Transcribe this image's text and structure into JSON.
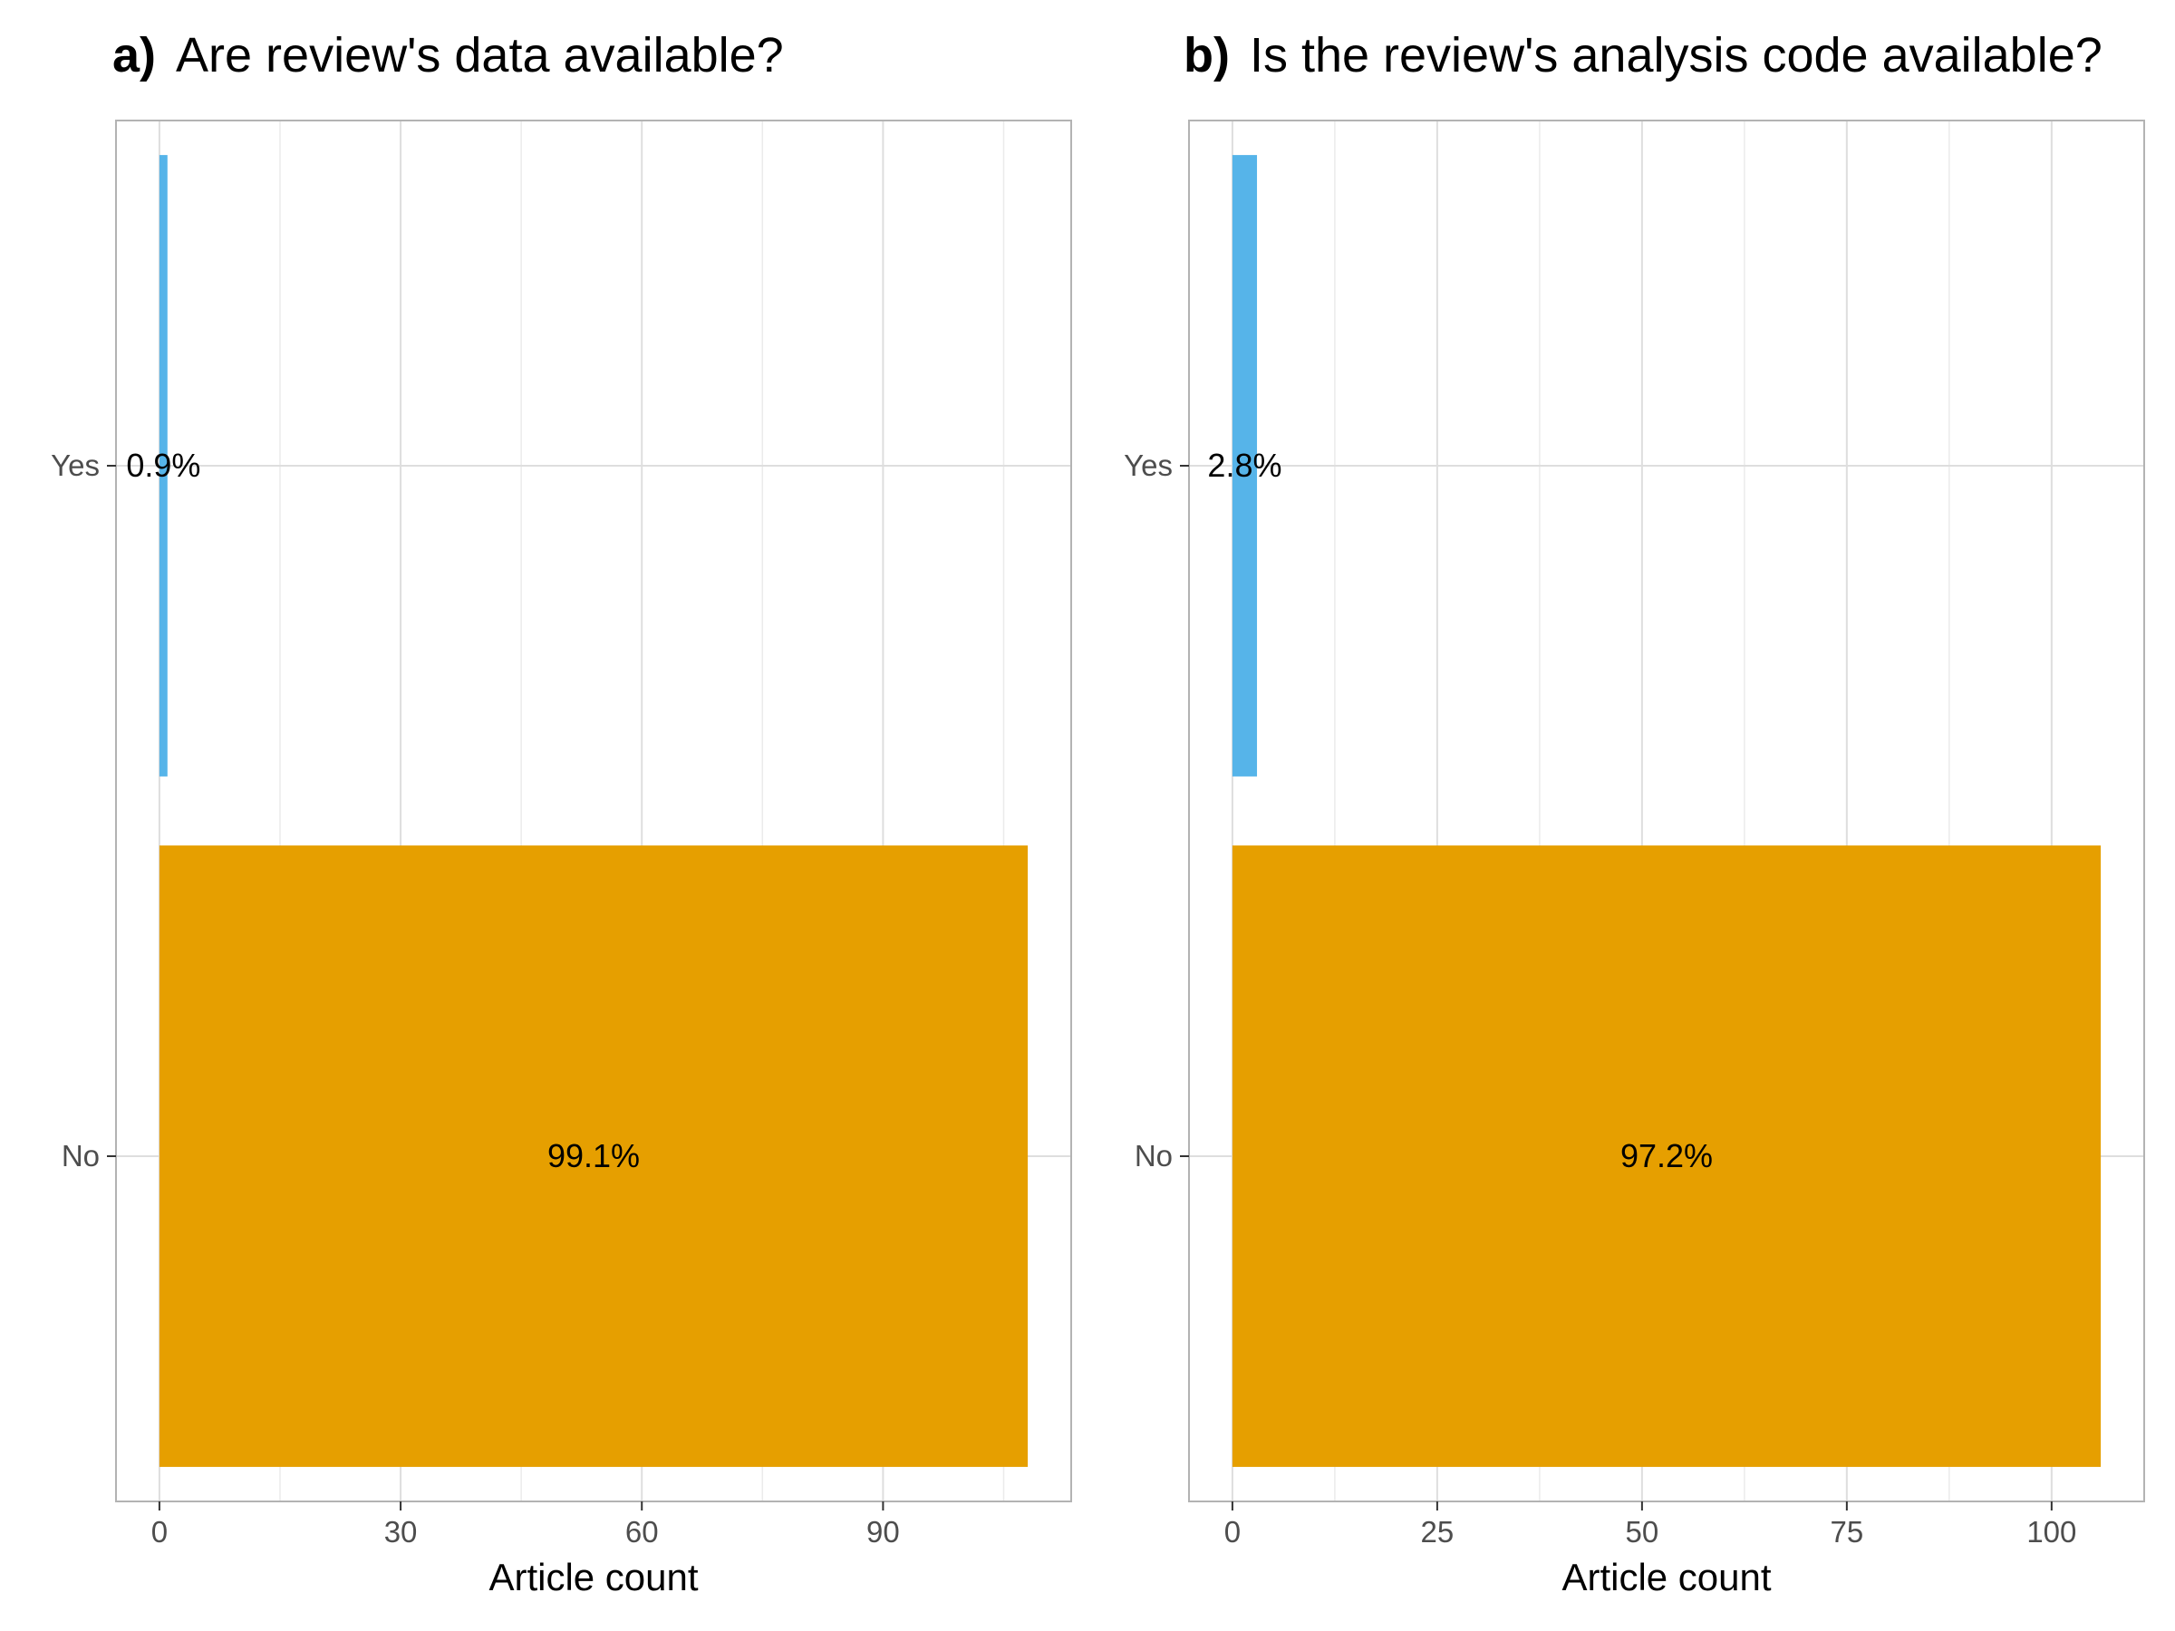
{
  "chart_data": [
    {
      "type": "bar",
      "orientation": "horizontal",
      "tag": "a)",
      "title": "Are review's data available?",
      "categories": [
        "Yes",
        "No"
      ],
      "values": [
        1,
        108
      ],
      "labels": [
        "0.9%",
        "99.1%"
      ],
      "colors": [
        "#56B4E9",
        "#E69F00"
      ],
      "xlabel": "Article count",
      "ylabel": "",
      "xlim": [
        -5.4,
        113.4
      ],
      "xticks": [
        0,
        30,
        60,
        90
      ],
      "grid": true,
      "legend": "none"
    },
    {
      "type": "bar",
      "orientation": "horizontal",
      "tag": "b)",
      "title": "Is the review's analysis code available?",
      "categories": [
        "Yes",
        "No"
      ],
      "values": [
        3,
        106
      ],
      "labels": [
        "2.8%",
        "97.2%"
      ],
      "colors": [
        "#56B4E9",
        "#E69F00"
      ],
      "xlabel": "Article count",
      "ylabel": "",
      "xlim": [
        -5.3,
        111.3
      ],
      "xticks": [
        0,
        25,
        50,
        75,
        100
      ],
      "grid": true,
      "legend": "none"
    }
  ]
}
